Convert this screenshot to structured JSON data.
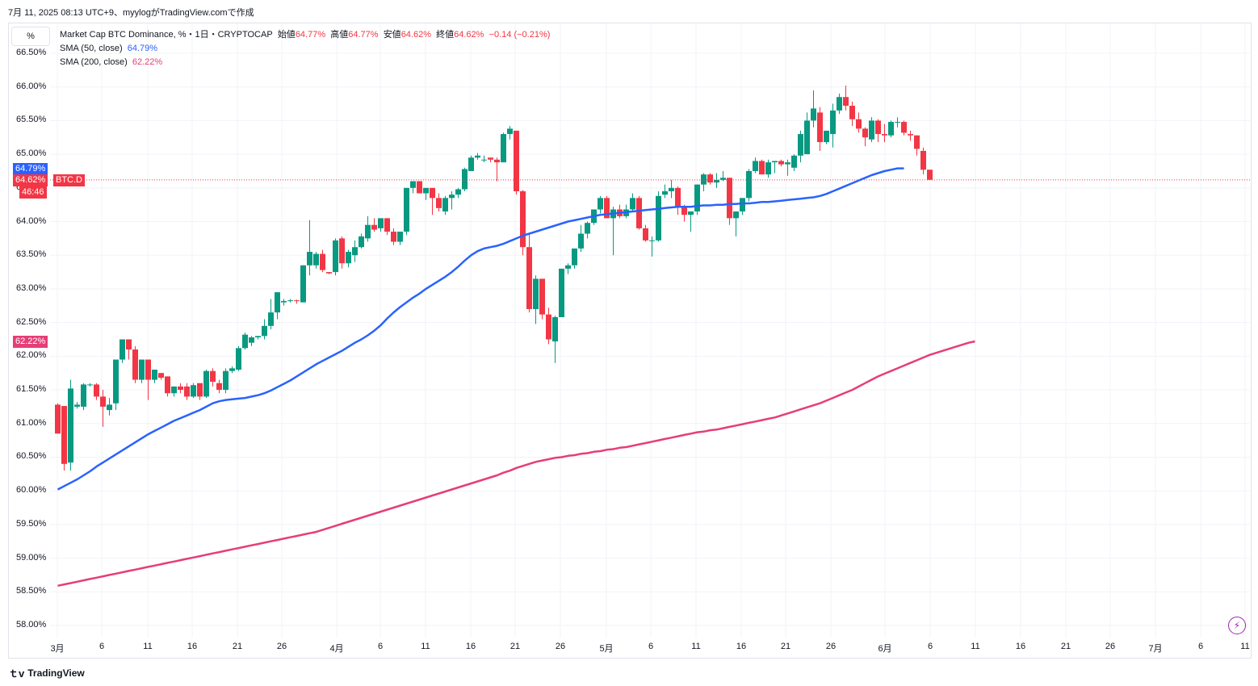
{
  "header": {
    "datetime_line": "7月 11, 2025 08:13 UTC+9、myylogがTradingView.comで作成"
  },
  "toolbar": {
    "percent_button": "%"
  },
  "legend": {
    "title": "Market Cap BTC Dominance, %・1日・CRYPTOCAP",
    "o_label": "始値",
    "o_value": "64.77%",
    "h_label": "高値",
    "h_value": "64.77%",
    "l_label": "安値",
    "l_value": "64.62%",
    "c_label": "終値",
    "c_value": "64.62%",
    "change": "−0.14 (−0.21%)",
    "sma50_label": "SMA (50, close)",
    "sma50_value": "64.79%",
    "sma200_label": "SMA (200, close)",
    "sma200_value": "62.22%"
  },
  "price_tags": {
    "sma50": "64.79%",
    "last": "64.62%",
    "symbol": "BTC.D",
    "countdown": "46:46",
    "sma200": "62.22%"
  },
  "colors": {
    "up": "#089981",
    "down": "#f23645",
    "sma50": "#2962ff",
    "sma200": "#e63e77",
    "grid": "#f0f3fa"
  },
  "footer": {
    "brand": "TradingView"
  },
  "chart_data": {
    "type": "candlestick",
    "title": "Market Cap BTC Dominance, %・1日・CRYPTOCAP",
    "y_unit": "%",
    "ylim": [
      57.95,
      66.62
    ],
    "y_ticks": [
      "58.00%",
      "58.50%",
      "59.00%",
      "59.50%",
      "60.00%",
      "60.50%",
      "61.00%",
      "61.50%",
      "62.00%",
      "62.50%",
      "63.00%",
      "63.50%",
      "64.00%",
      "64.50%",
      "65.00%",
      "65.50%",
      "66.00%",
      "66.50%"
    ],
    "x_ticks": [
      "3月",
      "6",
      "11",
      "16",
      "21",
      "26",
      "4月",
      "6",
      "11",
      "16",
      "21",
      "26",
      "5月",
      "6",
      "11",
      "16",
      "21",
      "26",
      "6月",
      "6",
      "11",
      "16",
      "21",
      "26",
      "7月",
      "6",
      "11"
    ],
    "grid": true,
    "candles_ohlc": [
      [
        61.28,
        61.3,
        60.85,
        60.85
      ],
      [
        61.26,
        61.26,
        60.3,
        60.4
      ],
      [
        60.42,
        61.65,
        60.3,
        61.52
      ],
      [
        61.25,
        61.32,
        61.22,
        61.28
      ],
      [
        61.25,
        61.6,
        61.2,
        61.58
      ],
      [
        61.58,
        61.6,
        61.55,
        61.58
      ],
      [
        61.58,
        61.6,
        61.35,
        61.4
      ],
      [
        61.4,
        61.5,
        60.95,
        61.25
      ],
      [
        61.2,
        61.38,
        61.12,
        61.28
      ],
      [
        61.3,
        61.95,
        61.2,
        61.95
      ],
      [
        61.95,
        62.25,
        61.9,
        62.25
      ],
      [
        62.25,
        62.25,
        61.95,
        62.1
      ],
      [
        62.1,
        62.15,
        61.6,
        61.65
      ],
      [
        61.65,
        61.95,
        61.6,
        61.95
      ],
      [
        61.95,
        61.95,
        61.35,
        61.65
      ],
      [
        61.65,
        61.8,
        61.6,
        61.8
      ],
      [
        61.75,
        61.75,
        61.65,
        61.68
      ],
      [
        61.7,
        61.7,
        61.4,
        61.45
      ],
      [
        61.45,
        61.55,
        61.4,
        61.55
      ],
      [
        61.55,
        61.6,
        61.45,
        61.5
      ],
      [
        61.55,
        61.6,
        61.35,
        61.4
      ],
      [
        61.4,
        61.6,
        61.38,
        61.57
      ],
      [
        61.6,
        61.58,
        61.35,
        61.4
      ],
      [
        61.4,
        61.8,
        61.38,
        61.78
      ],
      [
        61.78,
        61.82,
        61.55,
        61.62
      ],
      [
        61.6,
        61.65,
        61.45,
        61.5
      ],
      [
        61.5,
        61.82,
        61.45,
        61.78
      ],
      [
        61.78,
        61.85,
        61.75,
        61.82
      ],
      [
        61.8,
        62.15,
        61.78,
        62.12
      ],
      [
        62.12,
        62.35,
        62.1,
        62.32
      ],
      [
        62.2,
        62.3,
        62.15,
        62.28
      ],
      [
        62.28,
        62.3,
        62.25,
        62.3
      ],
      [
        62.3,
        62.55,
        62.25,
        62.45
      ],
      [
        62.45,
        62.85,
        62.4,
        62.65
      ],
      [
        62.65,
        62.95,
        62.55,
        62.95
      ],
      [
        62.8,
        62.85,
        62.75,
        62.82
      ],
      [
        62.82,
        62.85,
        62.8,
        62.83
      ],
      [
        62.83,
        62.84,
        62.78,
        62.82
      ],
      [
        62.8,
        63.35,
        62.8,
        63.35
      ],
      [
        63.35,
        64.02,
        63.2,
        63.55
      ],
      [
        63.35,
        63.55,
        63.3,
        63.52
      ],
      [
        63.52,
        63.58,
        63.25,
        63.28
      ],
      [
        63.25,
        63.25,
        63.22,
        63.23
      ],
      [
        63.25,
        63.75,
        63.2,
        63.72
      ],
      [
        63.75,
        63.78,
        63.3,
        63.38
      ],
      [
        63.38,
        63.58,
        63.32,
        63.55
      ],
      [
        63.5,
        63.72,
        63.4,
        63.62
      ],
      [
        63.62,
        63.82,
        63.6,
        63.78
      ],
      [
        63.75,
        64.08,
        63.7,
        63.95
      ],
      [
        63.95,
        64.05,
        63.85,
        63.88
      ],
      [
        63.9,
        64.02,
        63.85,
        64.05
      ],
      [
        64.05,
        64.05,
        63.8,
        63.85
      ],
      [
        63.85,
        63.9,
        63.65,
        63.7
      ],
      [
        63.7,
        63.85,
        63.65,
        63.85
      ],
      [
        63.85,
        64.5,
        63.8,
        64.5
      ],
      [
        64.5,
        64.6,
        64.42,
        64.6
      ],
      [
        64.6,
        64.6,
        64.42,
        64.42
      ],
      [
        64.42,
        64.5,
        64.32,
        64.5
      ],
      [
        64.5,
        64.5,
        64.1,
        64.35
      ],
      [
        64.35,
        64.42,
        64.15,
        64.2
      ],
      [
        64.15,
        64.38,
        64.1,
        64.35
      ],
      [
        64.35,
        64.45,
        64.18,
        64.4
      ],
      [
        64.4,
        64.5,
        64.35,
        64.48
      ],
      [
        64.48,
        64.8,
        64.45,
        64.78
      ],
      [
        64.75,
        64.98,
        64.75,
        64.95
      ],
      [
        64.95,
        65.02,
        64.92,
        64.98
      ],
      [
        64.92,
        64.98,
        64.88,
        64.92
      ],
      [
        64.95,
        64.95,
        64.88,
        64.92
      ],
      [
        64.92,
        64.95,
        64.6,
        64.88
      ],
      [
        64.88,
        65.32,
        64.88,
        65.3
      ],
      [
        65.3,
        65.42,
        65.22,
        65.38
      ],
      [
        65.35,
        65.35,
        64.4,
        64.45
      ],
      [
        64.45,
        64.47,
        63.5,
        63.62
      ],
      [
        63.62,
        63.82,
        62.65,
        62.7
      ],
      [
        62.7,
        63.2,
        62.48,
        63.15
      ],
      [
        63.15,
        63.15,
        62.55,
        62.62
      ],
      [
        62.62,
        62.72,
        62.18,
        62.25
      ],
      [
        62.22,
        62.6,
        61.9,
        62.58
      ],
      [
        62.58,
        63.3,
        62.58,
        63.3
      ],
      [
        63.3,
        63.38,
        63.22,
        63.35
      ],
      [
        63.35,
        63.6,
        63.3,
        63.6
      ],
      [
        63.6,
        63.95,
        63.55,
        63.82
      ],
      [
        63.82,
        64.0,
        63.75,
        63.98
      ],
      [
        63.98,
        64.18,
        63.95,
        64.18
      ],
      [
        64.18,
        64.38,
        64.12,
        64.35
      ],
      [
        64.35,
        64.38,
        64.05,
        64.05
      ],
      [
        64.05,
        64.22,
        63.5,
        64.18
      ],
      [
        64.18,
        64.25,
        64.05,
        64.08
      ],
      [
        64.08,
        64.25,
        64.05,
        64.18
      ],
      [
        64.18,
        64.42,
        64.15,
        64.35
      ],
      [
        64.35,
        64.38,
        63.88,
        63.9
      ],
      [
        63.9,
        63.95,
        63.7,
        63.72
      ],
      [
        63.72,
        63.78,
        63.48,
        63.72
      ],
      [
        63.72,
        64.45,
        63.7,
        64.38
      ],
      [
        64.4,
        64.55,
        64.35,
        64.45
      ],
      [
        64.45,
        64.62,
        64.35,
        64.5
      ],
      [
        64.5,
        64.52,
        64.1,
        64.22
      ],
      [
        64.22,
        64.25,
        64.0,
        64.1
      ],
      [
        64.1,
        64.15,
        63.85,
        64.15
      ],
      [
        64.15,
        64.55,
        64.1,
        64.55
      ],
      [
        64.55,
        64.72,
        64.45,
        64.7
      ],
      [
        64.7,
        64.72,
        64.55,
        64.58
      ],
      [
        64.58,
        64.72,
        64.5,
        64.62
      ],
      [
        64.62,
        64.75,
        64.6,
        64.65
      ],
      [
        64.65,
        64.65,
        63.95,
        64.05
      ],
      [
        64.05,
        64.15,
        63.78,
        64.15
      ],
      [
        64.15,
        64.35,
        64.1,
        64.35
      ],
      [
        64.35,
        64.78,
        64.3,
        64.75
      ],
      [
        64.75,
        64.95,
        64.72,
        64.9
      ],
      [
        64.9,
        64.92,
        64.7,
        64.7
      ],
      [
        64.7,
        64.92,
        64.65,
        64.88
      ],
      [
        64.88,
        64.9,
        64.72,
        64.9
      ],
      [
        64.9,
        64.92,
        64.82,
        64.85
      ],
      [
        64.85,
        64.92,
        64.68,
        64.88
      ],
      [
        64.8,
        65.0,
        64.75,
        64.98
      ],
      [
        64.98,
        65.35,
        64.88,
        65.3
      ],
      [
        65.0,
        65.62,
        65.1,
        65.5
      ],
      [
        65.5,
        65.95,
        65.4,
        65.68
      ],
      [
        65.62,
        65.7,
        65.05,
        65.18
      ],
      [
        65.18,
        65.35,
        65.15,
        65.35
      ],
      [
        65.3,
        65.75,
        65.1,
        65.65
      ],
      [
        65.65,
        65.9,
        65.6,
        65.85
      ],
      [
        65.85,
        66.02,
        65.65,
        65.72
      ],
      [
        65.72,
        65.78,
        65.42,
        65.52
      ],
      [
        65.52,
        65.62,
        65.32,
        65.38
      ],
      [
        65.38,
        65.4,
        65.12,
        65.25
      ],
      [
        65.22,
        65.55,
        65.18,
        65.5
      ],
      [
        65.5,
        65.52,
        65.18,
        65.3
      ],
      [
        65.3,
        65.45,
        65.18,
        65.28
      ],
      [
        65.28,
        65.5,
        65.25,
        65.48
      ],
      [
        65.48,
        65.55,
        65.4,
        65.48
      ],
      [
        65.48,
        65.5,
        65.28,
        65.32
      ],
      [
        65.3,
        65.35,
        65.2,
        65.28
      ],
      [
        65.28,
        65.28,
        64.98,
        65.08
      ],
      [
        65.05,
        65.1,
        64.7,
        64.77
      ],
      [
        64.77,
        64.77,
        64.62,
        64.62
      ]
    ],
    "sma50": [
      60.02,
      60.07,
      60.12,
      60.17,
      60.23,
      60.29,
      60.36,
      60.42,
      60.48,
      60.54,
      60.6,
      60.66,
      60.72,
      60.78,
      60.84,
      60.89,
      60.94,
      60.99,
      61.04,
      61.08,
      61.12,
      61.16,
      61.2,
      61.25,
      61.3,
      61.33,
      61.35,
      61.36,
      61.37,
      61.38,
      61.4,
      61.42,
      61.45,
      61.49,
      61.54,
      61.59,
      61.64,
      61.7,
      61.76,
      61.82,
      61.88,
      61.93,
      61.98,
      62.03,
      62.08,
      62.14,
      62.2,
      62.25,
      62.31,
      62.38,
      62.46,
      62.56,
      62.65,
      62.73,
      62.8,
      62.87,
      62.93,
      63.0,
      63.06,
      63.12,
      63.18,
      63.25,
      63.33,
      63.42,
      63.5,
      63.56,
      63.6,
      63.62,
      63.64,
      63.67,
      63.71,
      63.75,
      63.79,
      63.82,
      63.85,
      63.88,
      63.91,
      63.94,
      63.97,
      64.0,
      64.02,
      64.04,
      64.06,
      64.08,
      64.1,
      64.11,
      64.12,
      64.13,
      64.14,
      64.15,
      64.16,
      64.17,
      64.18,
      64.19,
      64.2,
      64.21,
      64.22,
      64.22,
      64.22,
      64.23,
      64.24,
      64.24,
      64.25,
      64.25,
      64.26,
      64.26,
      64.27,
      64.27,
      64.28,
      64.29,
      64.29,
      64.3,
      64.31,
      64.32,
      64.33,
      64.34,
      64.35,
      64.36,
      64.38,
      64.41,
      64.45,
      64.49,
      64.53,
      64.57,
      64.61,
      64.65,
      64.69,
      64.72,
      64.75,
      64.77,
      64.79,
      64.79
    ],
    "sma200": [
      58.59,
      58.61,
      58.63,
      58.65,
      58.67,
      58.69,
      58.71,
      58.73,
      58.75,
      58.77,
      58.79,
      58.81,
      58.83,
      58.85,
      58.87,
      58.89,
      58.91,
      58.93,
      58.95,
      58.97,
      58.99,
      59.01,
      59.03,
      59.05,
      59.07,
      59.09,
      59.11,
      59.13,
      59.15,
      59.17,
      59.19,
      59.21,
      59.23,
      59.25,
      59.27,
      59.29,
      59.31,
      59.33,
      59.35,
      59.37,
      59.39,
      59.42,
      59.45,
      59.48,
      59.51,
      59.54,
      59.57,
      59.6,
      59.63,
      59.66,
      59.69,
      59.72,
      59.75,
      59.78,
      59.81,
      59.84,
      59.87,
      59.9,
      59.93,
      59.96,
      59.99,
      60.02,
      60.05,
      60.08,
      60.11,
      60.14,
      60.17,
      60.2,
      60.23,
      60.27,
      60.3,
      60.34,
      60.37,
      60.4,
      60.43,
      60.45,
      60.47,
      60.49,
      60.5,
      60.52,
      60.53,
      60.55,
      60.56,
      60.58,
      60.59,
      60.61,
      60.62,
      60.64,
      60.65,
      60.67,
      60.69,
      60.71,
      60.73,
      60.75,
      60.77,
      60.79,
      60.81,
      60.83,
      60.85,
      60.87,
      60.88,
      60.9,
      60.91,
      60.93,
      60.95,
      60.97,
      60.99,
      61.01,
      61.03,
      61.05,
      61.07,
      61.09,
      61.12,
      61.15,
      61.18,
      61.21,
      61.24,
      61.27,
      61.3,
      61.34,
      61.38,
      61.42,
      61.46,
      61.5,
      61.55,
      61.6,
      61.65,
      61.7,
      61.74,
      61.78,
      61.82,
      61.86,
      61.9,
      61.94,
      61.98,
      62.02,
      62.05,
      62.08,
      62.11,
      62.14,
      62.17,
      62.2,
      62.22
    ]
  }
}
